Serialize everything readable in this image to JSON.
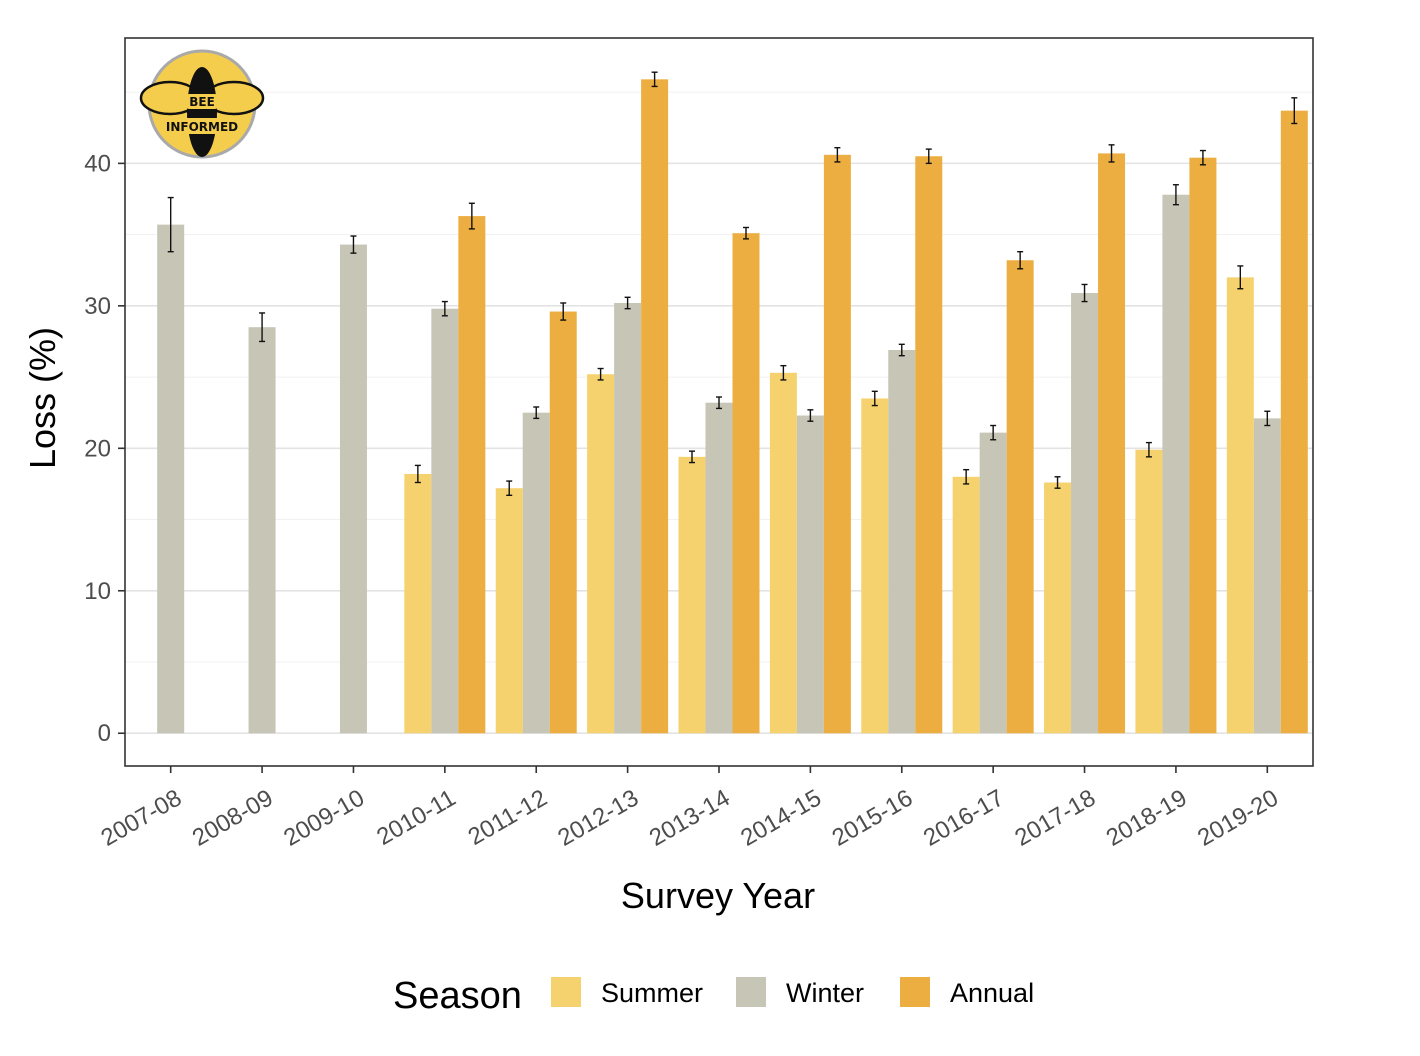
{
  "chart_data": {
    "type": "bar",
    "title": "",
    "xlabel": "Survey Year",
    "ylabel": "Loss (%)",
    "ylim": [
      -2.3,
      48.8
    ],
    "yticks": [
      0,
      10,
      20,
      30,
      40
    ],
    "grid": true,
    "legend_position": "bottom",
    "legend_title": "Season",
    "categories": [
      "2007-08",
      "2008-09",
      "2009-10",
      "2010-11",
      "2011-12",
      "2012-13",
      "2013-14",
      "2014-15",
      "2015-16",
      "2016-17",
      "2017-18",
      "2018-19",
      "2019-20"
    ],
    "series": [
      {
        "name": "Summer",
        "color": "#f5d26e",
        "values": [
          null,
          null,
          null,
          18.2,
          17.2,
          25.2,
          19.4,
          25.3,
          23.5,
          18.0,
          17.6,
          19.9,
          32.0
        ],
        "error": [
          null,
          null,
          null,
          0.6,
          0.5,
          0.4,
          0.4,
          0.5,
          0.5,
          0.5,
          0.4,
          0.5,
          0.8
        ]
      },
      {
        "name": "Winter",
        "color": "#c6c5b6",
        "values": [
          35.7,
          28.5,
          34.3,
          29.8,
          22.5,
          30.2,
          23.2,
          22.3,
          26.9,
          21.1,
          30.9,
          37.8,
          22.1
        ],
        "error": [
          1.9,
          1.0,
          0.6,
          0.5,
          0.4,
          0.4,
          0.4,
          0.4,
          0.4,
          0.5,
          0.6,
          0.7,
          0.5
        ]
      },
      {
        "name": "Annual",
        "color": "#edae41",
        "values": [
          null,
          null,
          null,
          36.3,
          29.6,
          45.9,
          35.1,
          40.6,
          40.5,
          33.2,
          40.7,
          40.4,
          43.7
        ],
        "error": [
          null,
          null,
          null,
          0.9,
          0.6,
          0.5,
          0.4,
          0.5,
          0.5,
          0.6,
          0.6,
          0.5,
          0.9
        ]
      }
    ]
  },
  "logo": {
    "text_line1": "BEE",
    "text_line2": "INFORMED",
    "fill_color": "#f4cd4c",
    "body_color": "#111111"
  }
}
